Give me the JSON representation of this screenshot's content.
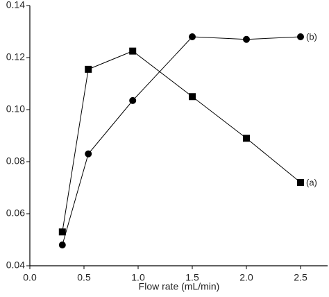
{
  "chart_data": {
    "type": "line",
    "x_label": "Flow rate (mL/min)",
    "xlim": [
      0,
      2.75
    ],
    "xticks": [
      {
        "value": 0,
        "label": "0.0"
      },
      0.5,
      {
        "value": 1,
        "label": "1.0"
      },
      1.5,
      {
        "value": 2,
        "label": "2.0"
      },
      2.5
    ],
    "ylim": [
      0.04,
      0.14
    ],
    "yticks": [
      0.04,
      0.06,
      0.08,
      {
        "value": 0.1,
        "label": "0.10"
      },
      0.12,
      0.14
    ],
    "series": [
      {
        "name": "(a)",
        "marker": "square",
        "color": "#000000",
        "x": [
          0.3,
          0.54,
          0.95,
          1.5,
          2.0,
          2.5
        ],
        "values": [
          0.053,
          0.1155,
          0.1225,
          0.105,
          0.089,
          0.072
        ]
      },
      {
        "name": "(b)",
        "marker": "circle",
        "color": "#000000",
        "x": [
          0.3,
          0.54,
          0.95,
          1.5,
          2.0,
          2.5
        ],
        "values": [
          0.048,
          0.083,
          0.1035,
          0.128,
          0.127,
          0.128
        ]
      }
    ]
  }
}
